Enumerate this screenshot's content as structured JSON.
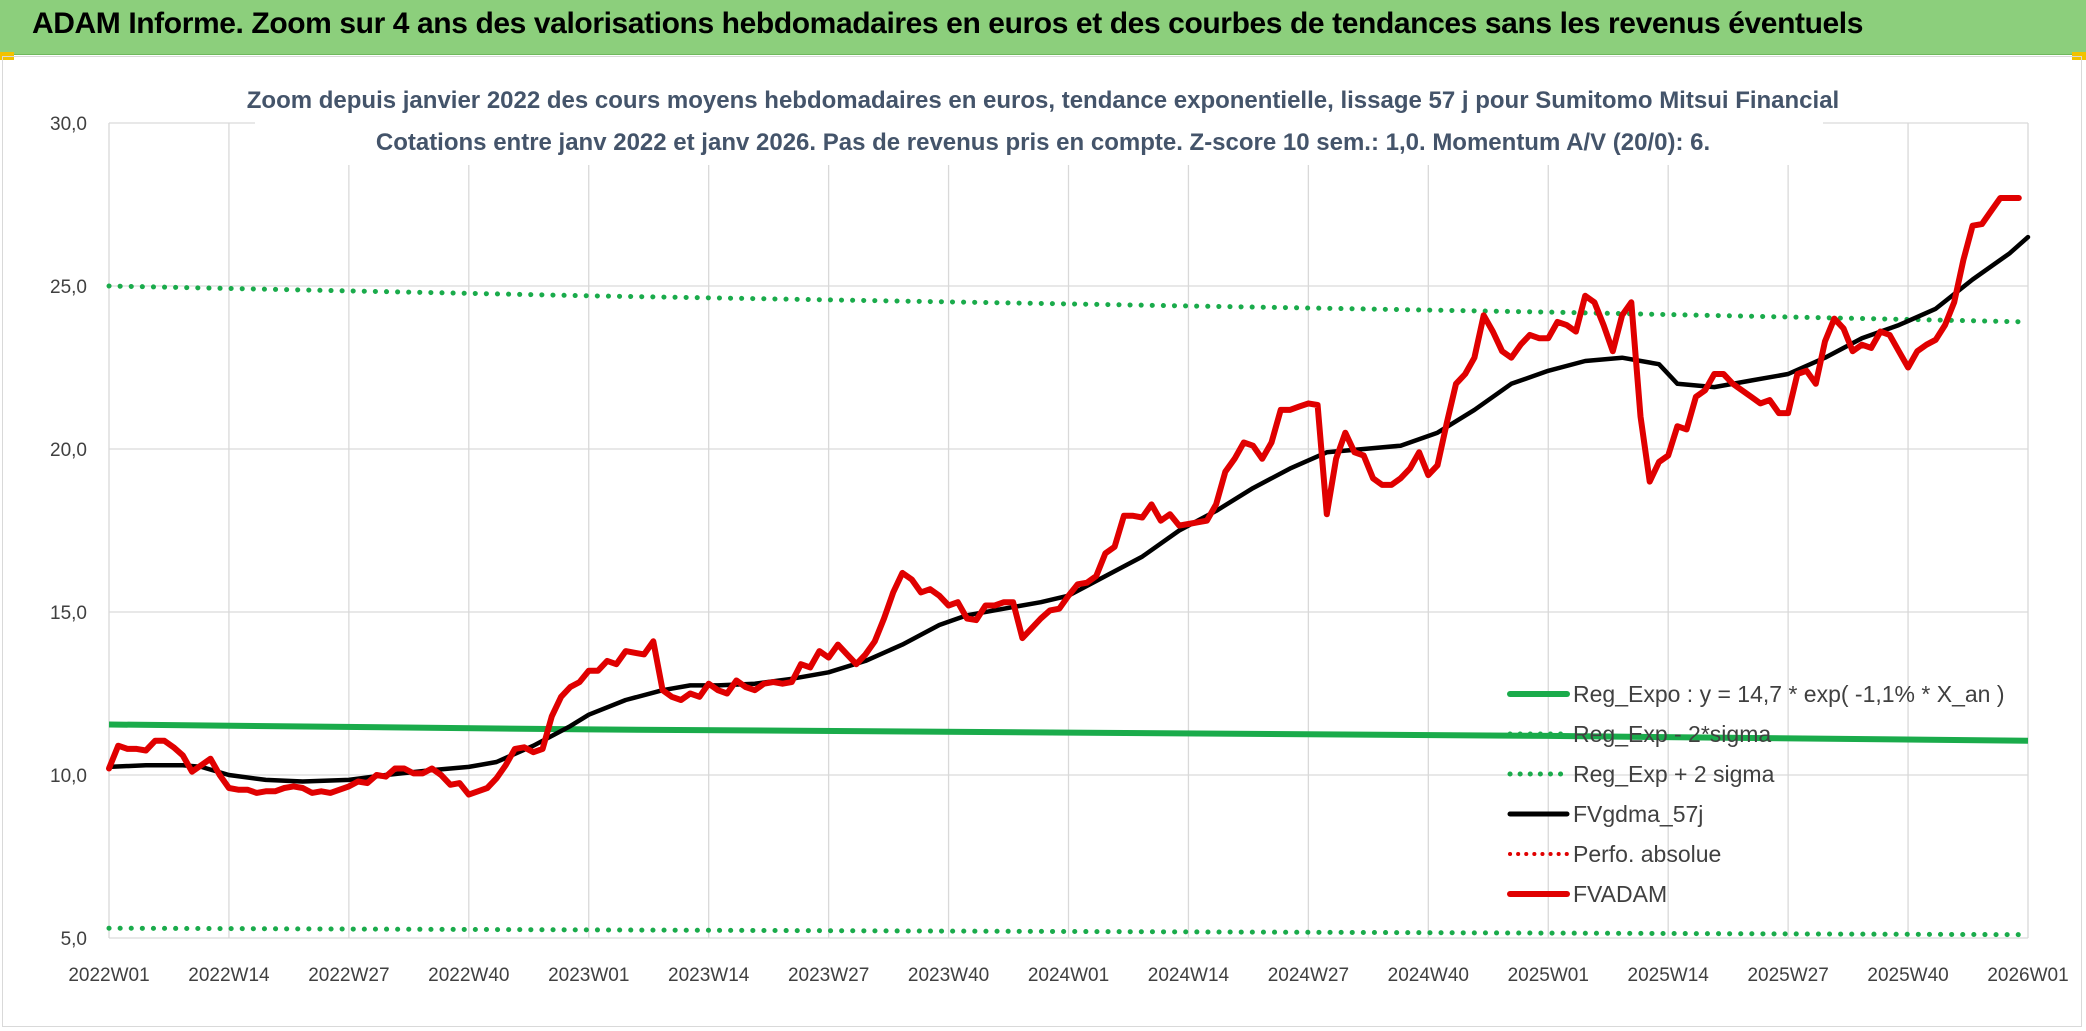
{
  "header": {
    "title": "ADAM Informe. Zoom sur 4 ans des valorisations hebdomadaires en euros et des courbes de tendances sans les revenus éventuels"
  },
  "colors": {
    "header_bg": "#8ccf7c",
    "reg_expo": "#1aab4b",
    "sigma_lines": "#1aab4b",
    "fvgdma": "#000000",
    "perfo": "#e00000",
    "fvadam": "#e00000"
  },
  "chart_data": {
    "type": "line",
    "title": [
      "Zoom depuis janvier 2022 des cours moyens hebdomadaires en euros, tendance exponentielle, lissage 57 j pour Sumitomo Mitsui Financial",
      "Cotations entre janv 2022 et janv 2026. Pas de revenus pris en compte. Z-score 10 sem.: 1,0. Momentum A/V (20/0): 6."
    ],
    "ylim": [
      5.0,
      30.0
    ],
    "y_ticks": [
      "5,0",
      "10,0",
      "15,0",
      "20,0",
      "25,0",
      "30,0"
    ],
    "x_ticks": [
      "2022W01",
      "2022W14",
      "2022W27",
      "2022W40",
      "2023W01",
      "2023W14",
      "2023W27",
      "2023W40",
      "2024W01",
      "2024W14",
      "2024W27",
      "2024W40",
      "2025W01",
      "2025W14",
      "2025W27",
      "2025W40",
      "2026W01"
    ],
    "grid": true,
    "legend_position": "bottom-right",
    "legend": [
      {
        "label": "Reg_Expo : y = 14,7 * exp( -1,1% *  X_an )",
        "style": "solid",
        "color": "#1aab4b"
      },
      {
        "label": "Reg_Exp - 2*sigma",
        "style": "dotted",
        "color": "#1aab4b"
      },
      {
        "label": "Reg_Exp + 2 sigma",
        "style": "dotted",
        "color": "#1aab4b"
      },
      {
        "label": "FVgdma_57j",
        "style": "solid",
        "color": "#000000"
      },
      {
        "label": "Perfo. absolue",
        "style": "dotted",
        "color": "#e00000"
      },
      {
        "label": "FVADAM",
        "style": "solid",
        "color": "#e00000"
      }
    ],
    "series": [
      {
        "name": "Reg_Expo : y = 14,7 * exp( -1,1% *  X_an )",
        "points": [
          [
            0,
            11.55
          ],
          [
            52,
            11.4
          ],
          [
            104,
            11.3
          ],
          [
            156,
            11.2
          ],
          [
            208,
            11.05
          ]
        ]
      },
      {
        "name": "Reg_Exp - 2*sigma",
        "points": [
          [
            0,
            5.3
          ],
          [
            52,
            5.25
          ],
          [
            104,
            5.2
          ],
          [
            156,
            5.15
          ],
          [
            208,
            5.1
          ]
        ]
      },
      {
        "name": "Reg_Exp + 2 sigma",
        "points": [
          [
            0,
            25.0
          ],
          [
            52,
            24.7
          ],
          [
            104,
            24.45
          ],
          [
            156,
            24.2
          ],
          [
            208,
            23.9
          ]
        ]
      },
      {
        "name": "FVgdma_57j",
        "points": [
          [
            0,
            10.25
          ],
          [
            4,
            10.3
          ],
          [
            8,
            10.3
          ],
          [
            10,
            10.25
          ],
          [
            13,
            10.0
          ],
          [
            17,
            9.85
          ],
          [
            21,
            9.8
          ],
          [
            26,
            9.85
          ],
          [
            30,
            10.0
          ],
          [
            35,
            10.15
          ],
          [
            39,
            10.25
          ],
          [
            42,
            10.4
          ],
          [
            46,
            10.9
          ],
          [
            50,
            11.5
          ],
          [
            52,
            11.85
          ],
          [
            56,
            12.3
          ],
          [
            60,
            12.6
          ],
          [
            63,
            12.75
          ],
          [
            66,
            12.75
          ],
          [
            70,
            12.8
          ],
          [
            74,
            12.95
          ],
          [
            78,
            13.15
          ],
          [
            82,
            13.5
          ],
          [
            86,
            14.0
          ],
          [
            90,
            14.6
          ],
          [
            93,
            14.9
          ],
          [
            97,
            15.1
          ],
          [
            101,
            15.3
          ],
          [
            104,
            15.5
          ],
          [
            108,
            16.1
          ],
          [
            112,
            16.7
          ],
          [
            116,
            17.5
          ],
          [
            120,
            18.1
          ],
          [
            124,
            18.8
          ],
          [
            128,
            19.4
          ],
          [
            132,
            19.9
          ],
          [
            136,
            20.0
          ],
          [
            140,
            20.1
          ],
          [
            144,
            20.5
          ],
          [
            148,
            21.2
          ],
          [
            152,
            22.0
          ],
          [
            156,
            22.4
          ],
          [
            160,
            22.7
          ],
          [
            164,
            22.8
          ],
          [
            168,
            22.6
          ],
          [
            170,
            22.0
          ],
          [
            174,
            21.9
          ],
          [
            178,
            22.1
          ],
          [
            182,
            22.3
          ],
          [
            186,
            22.8
          ],
          [
            190,
            23.4
          ],
          [
            194,
            23.8
          ],
          [
            198,
            24.3
          ],
          [
            202,
            25.2
          ],
          [
            206,
            26.0
          ],
          [
            208,
            26.5
          ]
        ]
      },
      {
        "name": "FVADAM",
        "points": [
          [
            0,
            10.2
          ],
          [
            1,
            10.9
          ],
          [
            2,
            10.8
          ],
          [
            3,
            10.8
          ],
          [
            4,
            10.75
          ],
          [
            5,
            11.05
          ],
          [
            6,
            11.05
          ],
          [
            7,
            10.85
          ],
          [
            8,
            10.6
          ],
          [
            9,
            10.1
          ],
          [
            10,
            10.3
          ],
          [
            11,
            10.5
          ],
          [
            12,
            10.0
          ],
          [
            13,
            9.6
          ],
          [
            14,
            9.55
          ],
          [
            15,
            9.55
          ],
          [
            16,
            9.45
          ],
          [
            17,
            9.5
          ],
          [
            18,
            9.5
          ],
          [
            19,
            9.6
          ],
          [
            20,
            9.65
          ],
          [
            21,
            9.6
          ],
          [
            22,
            9.45
          ],
          [
            23,
            9.5
          ],
          [
            24,
            9.45
          ],
          [
            25,
            9.55
          ],
          [
            26,
            9.65
          ],
          [
            27,
            9.8
          ],
          [
            28,
            9.75
          ],
          [
            29,
            10.0
          ],
          [
            30,
            9.95
          ],
          [
            31,
            10.2
          ],
          [
            32,
            10.2
          ],
          [
            33,
            10.05
          ],
          [
            34,
            10.05
          ],
          [
            35,
            10.2
          ],
          [
            36,
            10.0
          ],
          [
            37,
            9.7
          ],
          [
            38,
            9.75
          ],
          [
            39,
            9.4
          ],
          [
            40,
            9.5
          ],
          [
            41,
            9.6
          ],
          [
            42,
            9.9
          ],
          [
            43,
            10.3
          ],
          [
            44,
            10.8
          ],
          [
            45,
            10.85
          ],
          [
            46,
            10.7
          ],
          [
            47,
            10.8
          ],
          [
            48,
            11.8
          ],
          [
            49,
            12.4
          ],
          [
            50,
            12.7
          ],
          [
            51,
            12.85
          ],
          [
            52,
            13.2
          ],
          [
            53,
            13.2
          ],
          [
            54,
            13.5
          ],
          [
            55,
            13.4
          ],
          [
            56,
            13.8
          ],
          [
            57,
            13.75
          ],
          [
            58,
            13.7
          ],
          [
            59,
            14.1
          ],
          [
            60,
            12.6
          ],
          [
            61,
            12.4
          ],
          [
            62,
            12.3
          ],
          [
            63,
            12.5
          ],
          [
            64,
            12.4
          ],
          [
            65,
            12.8
          ],
          [
            66,
            12.6
          ],
          [
            67,
            12.5
          ],
          [
            68,
            12.9
          ],
          [
            69,
            12.7
          ],
          [
            70,
            12.6
          ],
          [
            71,
            12.8
          ],
          [
            72,
            12.85
          ],
          [
            73,
            12.8
          ],
          [
            74,
            12.85
          ],
          [
            75,
            13.4
          ],
          [
            76,
            13.3
          ],
          [
            77,
            13.8
          ],
          [
            78,
            13.6
          ],
          [
            79,
            14.0
          ],
          [
            80,
            13.7
          ],
          [
            81,
            13.4
          ],
          [
            82,
            13.7
          ],
          [
            83,
            14.1
          ],
          [
            84,
            14.8
          ],
          [
            85,
            15.6
          ],
          [
            86,
            16.2
          ],
          [
            87,
            16.0
          ],
          [
            88,
            15.6
          ],
          [
            89,
            15.7
          ],
          [
            90,
            15.5
          ],
          [
            91,
            15.2
          ],
          [
            92,
            15.3
          ],
          [
            93,
            14.8
          ],
          [
            94,
            14.75
          ],
          [
            95,
            15.2
          ],
          [
            96,
            15.2
          ],
          [
            97,
            15.3
          ],
          [
            98,
            15.3
          ],
          [
            99,
            14.2
          ],
          [
            100,
            14.5
          ],
          [
            101,
            14.8
          ],
          [
            102,
            15.05
          ],
          [
            103,
            15.1
          ],
          [
            104,
            15.5
          ],
          [
            105,
            15.85
          ],
          [
            106,
            15.9
          ],
          [
            107,
            16.1
          ],
          [
            108,
            16.8
          ],
          [
            109,
            17.0
          ],
          [
            110,
            17.95
          ],
          [
            111,
            17.95
          ],
          [
            112,
            17.9
          ],
          [
            113,
            18.3
          ],
          [
            114,
            17.8
          ],
          [
            115,
            18.0
          ],
          [
            116,
            17.65
          ],
          [
            117,
            17.7
          ],
          [
            118,
            17.75
          ],
          [
            119,
            17.8
          ],
          [
            120,
            18.3
          ],
          [
            121,
            19.3
          ],
          [
            122,
            19.7
          ],
          [
            123,
            20.2
          ],
          [
            124,
            20.1
          ],
          [
            125,
            19.7
          ],
          [
            126,
            20.2
          ],
          [
            127,
            21.2
          ],
          [
            128,
            21.2
          ],
          [
            129,
            21.3
          ],
          [
            130,
            21.4
          ],
          [
            131,
            21.35
          ],
          [
            132,
            18.0
          ],
          [
            133,
            19.7
          ],
          [
            134,
            20.5
          ],
          [
            135,
            19.9
          ],
          [
            136,
            19.8
          ],
          [
            137,
            19.1
          ],
          [
            138,
            18.9
          ],
          [
            139,
            18.9
          ],
          [
            140,
            19.1
          ],
          [
            141,
            19.4
          ],
          [
            142,
            19.9
          ],
          [
            143,
            19.2
          ],
          [
            144,
            19.5
          ],
          [
            145,
            20.8
          ],
          [
            146,
            22.0
          ],
          [
            147,
            22.3
          ],
          [
            148,
            22.8
          ],
          [
            149,
            24.1
          ],
          [
            150,
            23.6
          ],
          [
            151,
            23.0
          ],
          [
            152,
            22.8
          ],
          [
            153,
            23.2
          ],
          [
            154,
            23.5
          ],
          [
            155,
            23.4
          ],
          [
            156,
            23.4
          ],
          [
            157,
            23.9
          ],
          [
            158,
            23.8
          ],
          [
            159,
            23.6
          ],
          [
            160,
            24.7
          ],
          [
            161,
            24.5
          ],
          [
            162,
            23.8
          ],
          [
            163,
            23.0
          ],
          [
            164,
            24.1
          ],
          [
            165,
            24.5
          ],
          [
            166,
            21.0
          ],
          [
            167,
            19.0
          ],
          [
            168,
            19.6
          ],
          [
            169,
            19.8
          ],
          [
            170,
            20.7
          ],
          [
            171,
            20.6
          ],
          [
            172,
            21.6
          ],
          [
            173,
            21.8
          ],
          [
            174,
            22.3
          ],
          [
            175,
            22.3
          ],
          [
            176,
            22.0
          ],
          [
            177,
            21.8
          ],
          [
            178,
            21.6
          ],
          [
            179,
            21.4
          ],
          [
            180,
            21.5
          ],
          [
            181,
            21.1
          ],
          [
            182,
            21.1
          ],
          [
            183,
            22.3
          ],
          [
            184,
            22.4
          ],
          [
            185,
            22.0
          ],
          [
            186,
            23.3
          ],
          [
            187,
            24.0
          ],
          [
            188,
            23.7
          ],
          [
            189,
            23.0
          ],
          [
            190,
            23.2
          ],
          [
            191,
            23.1
          ],
          [
            192,
            23.6
          ],
          [
            193,
            23.5
          ],
          [
            194,
            23.0
          ],
          [
            195,
            22.5
          ],
          [
            196,
            23.0
          ],
          [
            197,
            23.2
          ],
          [
            198,
            23.35
          ],
          [
            199,
            23.8
          ],
          [
            200,
            24.5
          ],
          [
            201,
            25.8
          ],
          [
            202,
            26.85
          ],
          [
            203,
            26.9
          ],
          [
            204,
            27.3
          ],
          [
            205,
            27.7
          ],
          [
            206,
            27.7
          ],
          [
            207,
            27.7
          ]
        ]
      }
    ]
  }
}
